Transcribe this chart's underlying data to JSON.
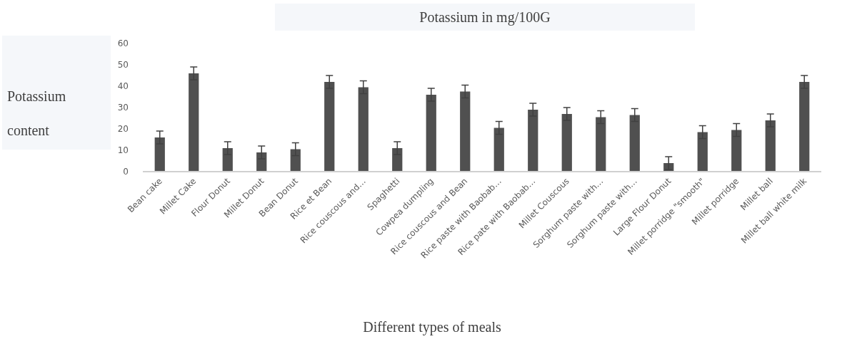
{
  "chart_data": {
    "type": "bar",
    "title": "Potassium in mg/100G",
    "xlabel": "Different types of meals",
    "ylabel": "Potassium content",
    "categories": [
      "Bean cake",
      "Millet Cake",
      "Flour Donut",
      "Millet Donut",
      "Bean Donut",
      "Rice et Bean",
      "Rice couscous and…",
      "Spaghetti",
      "Cowpea dumpling",
      "Rice couscous and Bean",
      "Rice paste with Baobab…",
      "Rice pate with Baobab…",
      "Millet Couscous",
      "Sorghum paste with…",
      "Sorghum paste with…",
      "Large Flour Donut",
      "Millet porridge \"smooth\"",
      "Millet porridge",
      "Millet ball",
      "Millet ball white milk"
    ],
    "values": [
      16,
      46,
      11,
      9,
      10.5,
      42,
      39.5,
      11,
      36,
      37.5,
      20.5,
      29,
      27,
      25.5,
      26.5,
      4,
      18.5,
      19.5,
      24,
      42
    ],
    "errors": [
      3,
      3,
      3,
      3,
      3,
      3,
      3,
      3,
      3,
      3,
      3,
      3,
      3,
      3,
      3,
      3,
      3,
      3,
      3,
      3
    ],
    "color": "#505050",
    "ylim": [
      0,
      60
    ],
    "yticks": [
      0,
      10,
      20,
      30,
      40,
      50,
      60
    ],
    "grid": false
  }
}
